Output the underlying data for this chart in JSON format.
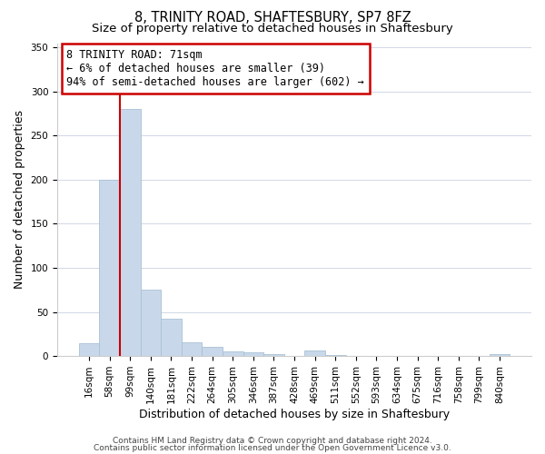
{
  "title": "8, TRINITY ROAD, SHAFTESBURY, SP7 8FZ",
  "subtitle": "Size of property relative to detached houses in Shaftesbury",
  "xlabel": "Distribution of detached houses by size in Shaftesbury",
  "ylabel": "Number of detached properties",
  "bar_labels": [
    "16sqm",
    "58sqm",
    "99sqm",
    "140sqm",
    "181sqm",
    "222sqm",
    "264sqm",
    "305sqm",
    "346sqm",
    "387sqm",
    "428sqm",
    "469sqm",
    "511sqm",
    "552sqm",
    "593sqm",
    "634sqm",
    "675sqm",
    "716sqm",
    "758sqm",
    "799sqm",
    "840sqm"
  ],
  "bar_values": [
    15,
    200,
    280,
    75,
    42,
    16,
    10,
    5,
    4,
    2,
    0,
    6,
    1,
    0,
    0,
    0,
    0,
    0,
    0,
    0,
    2
  ],
  "bar_color": "#c8d8ea",
  "bar_edge_color": "#a8c0d4",
  "vline_color": "#cc0000",
  "annotation_box_edge": "#cc0000",
  "ylim": [
    0,
    355
  ],
  "property_label": "8 TRINITY ROAD: 71sqm",
  "annotation_line1": "← 6% of detached houses are smaller (39)",
  "annotation_line2": "94% of semi-detached houses are larger (602) →",
  "footer1": "Contains HM Land Registry data © Crown copyright and database right 2024.",
  "footer2": "Contains public sector information licensed under the Open Government Licence v3.0.",
  "title_fontsize": 10.5,
  "subtitle_fontsize": 9.5,
  "axis_label_fontsize": 9,
  "tick_fontsize": 7.5,
  "footer_fontsize": 6.5
}
